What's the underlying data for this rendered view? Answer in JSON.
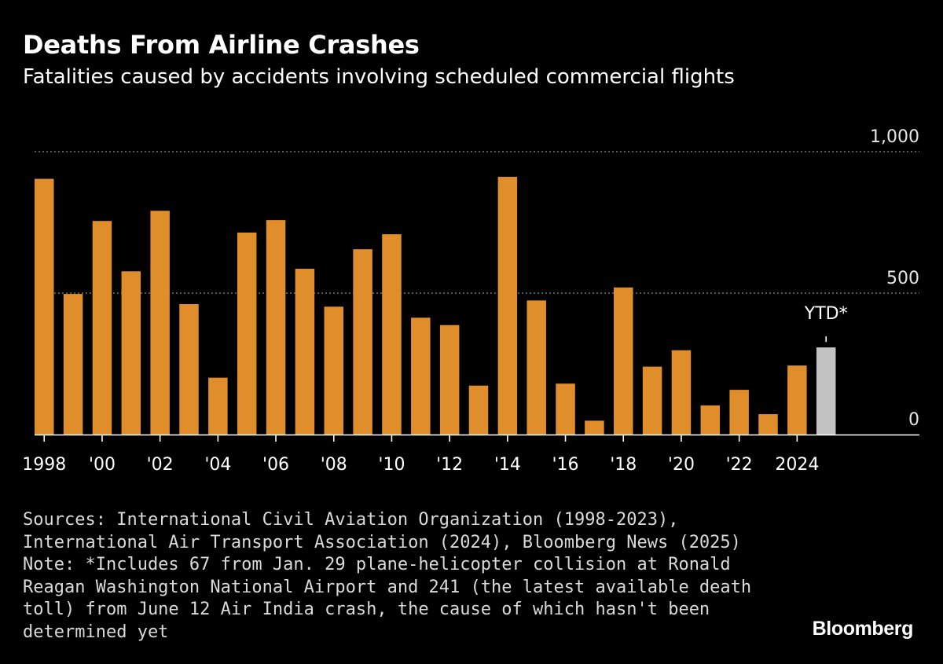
{
  "title": "Deaths From Airline Crashes",
  "subtitle": "Fatalities caused by accidents involving scheduled commercial flights",
  "chart_data": {
    "type": "bar",
    "categories": [
      "1998",
      "1999",
      "2000",
      "2001",
      "2002",
      "2003",
      "2004",
      "2005",
      "2006",
      "2007",
      "2008",
      "2009",
      "2010",
      "2011",
      "2012",
      "2013",
      "2014",
      "2015",
      "2016",
      "2017",
      "2018",
      "2019",
      "2020",
      "2021",
      "2022",
      "2023",
      "2024",
      "2025"
    ],
    "x_tick_labels": [
      "1998",
      "'00",
      "'02",
      "'04",
      "'06",
      "'08",
      "'10",
      "'12",
      "'14",
      "'16",
      "'18",
      "'20",
      "'22",
      "2024"
    ],
    "values": [
      904,
      497,
      755,
      577,
      791,
      461,
      201,
      714,
      758,
      586,
      452,
      655,
      708,
      413,
      387,
      173,
      911,
      474,
      180,
      49,
      520,
      240,
      298,
      103,
      158,
      72,
      244,
      308
    ],
    "ylim": [
      0,
      1000
    ],
    "y_ticks": [
      "1,000",
      "500",
      "0"
    ],
    "y_tick_values": [
      1000,
      500,
      0
    ],
    "bar_color": "#e08e2b",
    "highlight_color": "#c2c2c2",
    "highlight_index": 27,
    "highlight_label": "YTD*",
    "grid": true
  },
  "notes": {
    "line1": "Sources: International Civil Aviation Organization (1998-2023),",
    "line2": "International Air Transport Association (2024), Bloomberg News (2025)",
    "line3": "Note: *Includes 67 from Jan. 29 plane-helicopter collision at Ronald",
    "line4": "Reagan Washington National Airport and 241 (the latest available death",
    "line5": "toll) from June 12 Air India crash, the cause of which hasn't been",
    "line6": "determined yet"
  },
  "logo": "Bloomberg"
}
